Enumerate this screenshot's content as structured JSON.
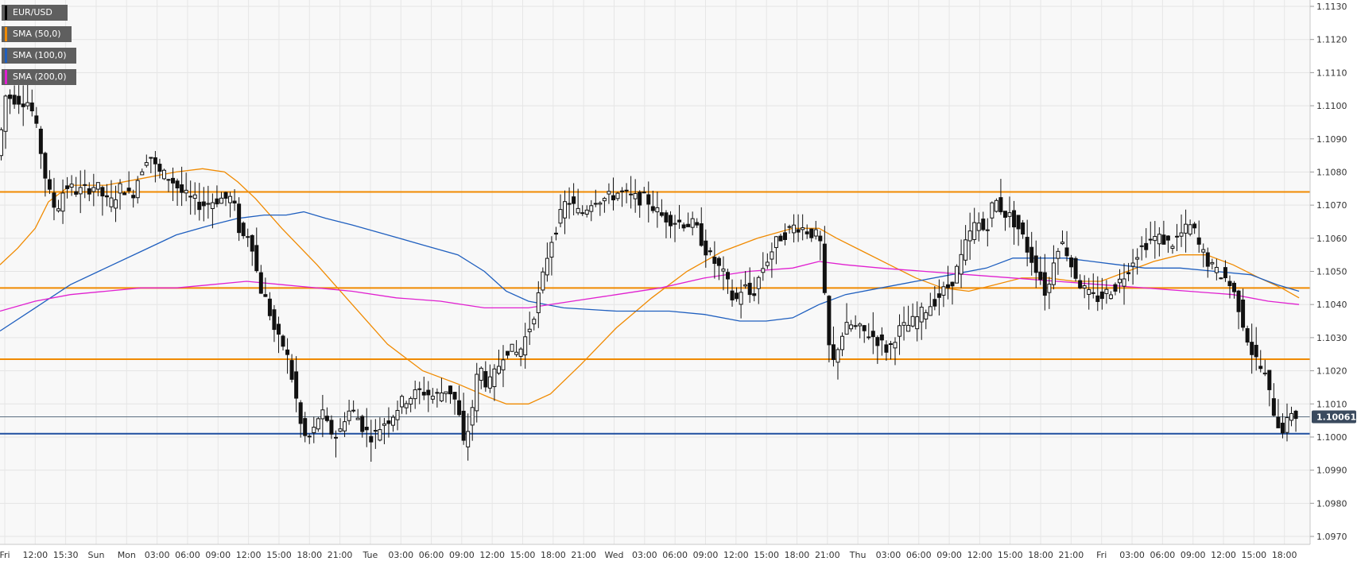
{
  "chart_data": {
    "type": "candlestick",
    "symbol": "EUR/USD",
    "ylim": [
      1.0965,
      1.1135
    ],
    "y_ticks": [
      "1.1130",
      "1.1120",
      "1.1110",
      "1.1100",
      "1.1090",
      "1.1080",
      "1.1070",
      "1.1060",
      "1.1050",
      "1.1040",
      "1.1030",
      "1.1020",
      "1.1010",
      "1.1000",
      "1.0990",
      "1.0980",
      "1.0970"
    ],
    "x_ticks": [
      "Fri",
      "12:00",
      "15:30",
      "Sun",
      "Mon",
      "03:00",
      "06:00",
      "09:00",
      "12:00",
      "15:00",
      "18:00",
      "21:00",
      "Tue",
      "03:00",
      "06:00",
      "09:00",
      "12:00",
      "15:00",
      "18:00",
      "21:00",
      "Wed",
      "03:00",
      "06:00",
      "09:00",
      "12:00",
      "15:00",
      "18:00",
      "21:00",
      "Thu",
      "03:00",
      "06:00",
      "09:00",
      "12:00",
      "15:00",
      "18:00",
      "21:00",
      "Fri",
      "03:00",
      "06:00",
      "09:00",
      "12:00",
      "15:00",
      "18:00"
    ],
    "current_price": "1.10061",
    "horizontal_levels": [
      {
        "value": 1.1074,
        "color": "#f08a00"
      },
      {
        "value": 1.1045,
        "color": "#f08a00"
      },
      {
        "value": 1.10235,
        "color": "#f08a00"
      },
      {
        "value": 1.1001,
        "color": "#1f4fa0"
      }
    ],
    "legend": [
      {
        "label": "EUR/USD",
        "color": "#000000"
      },
      {
        "label": "SMA (50,0)",
        "color": "#f08a00"
      },
      {
        "label": "SMA (100,0)",
        "color": "#1f5fbf"
      },
      {
        "label": "SMA (200,0)",
        "color": "#e020d0"
      }
    ],
    "price_path": [
      [
        0,
        1.1085
      ],
      [
        6,
        1.1103
      ],
      [
        20,
        1.1102
      ],
      [
        35,
        1.1101
      ],
      [
        45,
        1.109
      ],
      [
        55,
        1.1075
      ],
      [
        65,
        1.1068
      ],
      [
        75,
        1.1076
      ],
      [
        90,
        1.1074
      ],
      [
        110,
        1.1076
      ],
      [
        125,
        1.107
      ],
      [
        140,
        1.1076
      ],
      [
        150,
        1.1072
      ],
      [
        160,
        1.108
      ],
      [
        170,
        1.1086
      ],
      [
        180,
        1.108
      ],
      [
        195,
        1.1078
      ],
      [
        210,
        1.1073
      ],
      [
        230,
        1.107
      ],
      [
        250,
        1.1072
      ],
      [
        265,
        1.1072
      ],
      [
        275,
        1.106
      ],
      [
        285,
        1.1062
      ],
      [
        295,
        1.1046
      ],
      [
        305,
        1.104
      ],
      [
        315,
        1.103
      ],
      [
        325,
        1.1027
      ],
      [
        335,
        1.1015
      ],
      [
        345,
        1.1
      ],
      [
        355,
        1.1
      ],
      [
        365,
        1.1008
      ],
      [
        375,
        1.1002
      ],
      [
        385,
        1.1
      ],
      [
        395,
        1.1008
      ],
      [
        405,
        1.1007
      ],
      [
        415,
        1.1002
      ],
      [
        425,
        1.1
      ],
      [
        435,
        1.1004
      ],
      [
        445,
        1.1006
      ],
      [
        455,
        1.101
      ],
      [
        465,
        1.1012
      ],
      [
        480,
        1.1014
      ],
      [
        495,
        1.1012
      ],
      [
        510,
        1.1015
      ],
      [
        520,
        1.101
      ],
      [
        528,
        1.0997
      ],
      [
        535,
        1.1005
      ],
      [
        545,
        1.1022
      ],
      [
        555,
        1.1015
      ],
      [
        565,
        1.102
      ],
      [
        575,
        1.1027
      ],
      [
        590,
        1.1025
      ],
      [
        605,
        1.1035
      ],
      [
        615,
        1.1045
      ],
      [
        625,
        1.1058
      ],
      [
        635,
        1.1065
      ],
      [
        645,
        1.1072
      ],
      [
        660,
        1.1067
      ],
      [
        675,
        1.1072
      ],
      [
        690,
        1.1072
      ],
      [
        705,
        1.1074
      ],
      [
        720,
        1.1072
      ],
      [
        735,
        1.1072
      ],
      [
        750,
        1.1067
      ],
      [
        770,
        1.1065
      ],
      [
        790,
        1.1064
      ],
      [
        805,
        1.1055
      ],
      [
        815,
        1.1052
      ],
      [
        825,
        1.1048
      ],
      [
        835,
        1.104
      ],
      [
        845,
        1.1046
      ],
      [
        855,
        1.1042
      ],
      [
        865,
        1.105
      ],
      [
        875,
        1.1055
      ],
      [
        885,
        1.106
      ],
      [
        895,
        1.1062
      ],
      [
        905,
        1.1064
      ],
      [
        920,
        1.1062
      ],
      [
        932,
        1.106
      ],
      [
        938,
        1.104
      ],
      [
        945,
        1.102
      ],
      [
        955,
        1.103
      ],
      [
        965,
        1.1034
      ],
      [
        980,
        1.1032
      ],
      [
        995,
        1.103
      ],
      [
        1010,
        1.1026
      ],
      [
        1020,
        1.1032
      ],
      [
        1035,
        1.1034
      ],
      [
        1050,
        1.1038
      ],
      [
        1065,
        1.1042
      ],
      [
        1080,
        1.1046
      ],
      [
        1090,
        1.1052
      ],
      [
        1100,
        1.106
      ],
      [
        1110,
        1.1065
      ],
      [
        1120,
        1.1062
      ],
      [
        1130,
        1.1072
      ],
      [
        1140,
        1.1068
      ],
      [
        1150,
        1.1066
      ],
      [
        1160,
        1.1062
      ],
      [
        1170,
        1.1055
      ],
      [
        1180,
        1.105
      ],
      [
        1190,
        1.1042
      ],
      [
        1200,
        1.1058
      ],
      [
        1210,
        1.1058
      ],
      [
        1220,
        1.105
      ],
      [
        1230,
        1.1045
      ],
      [
        1240,
        1.1042
      ],
      [
        1250,
        1.1042
      ],
      [
        1260,
        1.1044
      ],
      [
        1270,
        1.1046
      ],
      [
        1280,
        1.105
      ],
      [
        1290,
        1.1055
      ],
      [
        1300,
        1.1058
      ],
      [
        1310,
        1.106
      ],
      [
        1320,
        1.106
      ],
      [
        1330,
        1.1058
      ],
      [
        1345,
        1.1062
      ],
      [
        1355,
        1.1064
      ],
      [
        1362,
        1.1058
      ],
      [
        1370,
        1.1054
      ],
      [
        1380,
        1.105
      ],
      [
        1390,
        1.1049
      ],
      [
        1400,
        1.1045
      ],
      [
        1407,
        1.104
      ],
      [
        1415,
        1.1032
      ],
      [
        1422,
        1.1026
      ],
      [
        1430,
        1.1022
      ],
      [
        1438,
        1.1018
      ],
      [
        1445,
        1.101
      ],
      [
        1452,
        1.1004
      ],
      [
        1460,
        1.1002
      ],
      [
        1467,
        1.1008
      ],
      [
        1474,
        1.1006
      ]
    ],
    "sma50": [
      [
        0,
        1.1052
      ],
      [
        20,
        1.1057
      ],
      [
        40,
        1.1063
      ],
      [
        55,
        1.1071
      ],
      [
        80,
        1.1076
      ],
      [
        120,
        1.1076
      ],
      [
        160,
        1.1078
      ],
      [
        200,
        1.108
      ],
      [
        230,
        1.1081
      ],
      [
        255,
        1.108
      ],
      [
        270,
        1.1077
      ],
      [
        290,
        1.1072
      ],
      [
        320,
        1.1063
      ],
      [
        360,
        1.1052
      ],
      [
        400,
        1.104
      ],
      [
        440,
        1.1028
      ],
      [
        480,
        1.102
      ],
      [
        520,
        1.1016
      ],
      [
        555,
        1.1012
      ],
      [
        575,
        1.101
      ],
      [
        600,
        1.101
      ],
      [
        625,
        1.1013
      ],
      [
        660,
        1.1022
      ],
      [
        700,
        1.1033
      ],
      [
        740,
        1.1042
      ],
      [
        780,
        1.105
      ],
      [
        820,
        1.1056
      ],
      [
        860,
        1.106
      ],
      [
        900,
        1.1063
      ],
      [
        930,
        1.1063
      ],
      [
        950,
        1.106
      ],
      [
        980,
        1.1056
      ],
      [
        1010,
        1.1052
      ],
      [
        1040,
        1.1048
      ],
      [
        1070,
        1.1045
      ],
      [
        1100,
        1.1044
      ],
      [
        1130,
        1.1046
      ],
      [
        1160,
        1.1048
      ],
      [
        1190,
        1.1048
      ],
      [
        1220,
        1.1047
      ],
      [
        1250,
        1.1047
      ],
      [
        1280,
        1.105
      ],
      [
        1310,
        1.1053
      ],
      [
        1340,
        1.1055
      ],
      [
        1370,
        1.1055
      ],
      [
        1400,
        1.1052
      ],
      [
        1430,
        1.1048
      ],
      [
        1455,
        1.1045
      ],
      [
        1475,
        1.1042
      ]
    ],
    "sma100": [
      [
        0,
        1.1032
      ],
      [
        40,
        1.1039
      ],
      [
        80,
        1.1046
      ],
      [
        120,
        1.1051
      ],
      [
        160,
        1.1056
      ],
      [
        200,
        1.1061
      ],
      [
        240,
        1.1064
      ],
      [
        270,
        1.1066
      ],
      [
        300,
        1.1067
      ],
      [
        325,
        1.1067
      ],
      [
        345,
        1.1068
      ],
      [
        370,
        1.1066
      ],
      [
        400,
        1.1064
      ],
      [
        440,
        1.1061
      ],
      [
        480,
        1.1058
      ],
      [
        520,
        1.1055
      ],
      [
        550,
        1.105
      ],
      [
        575,
        1.1044
      ],
      [
        600,
        1.1041
      ],
      [
        640,
        1.1039
      ],
      [
        700,
        1.1038
      ],
      [
        760,
        1.1038
      ],
      [
        800,
        1.1037
      ],
      [
        840,
        1.1035
      ],
      [
        870,
        1.1035
      ],
      [
        900,
        1.1036
      ],
      [
        930,
        1.104
      ],
      [
        960,
        1.1043
      ],
      [
        1000,
        1.1045
      ],
      [
        1040,
        1.1047
      ],
      [
        1080,
        1.1049
      ],
      [
        1120,
        1.1051
      ],
      [
        1150,
        1.1054
      ],
      [
        1180,
        1.1054
      ],
      [
        1210,
        1.1054
      ],
      [
        1240,
        1.1053
      ],
      [
        1270,
        1.1052
      ],
      [
        1300,
        1.1051
      ],
      [
        1340,
        1.1051
      ],
      [
        1380,
        1.105
      ],
      [
        1420,
        1.1049
      ],
      [
        1450,
        1.1046
      ],
      [
        1475,
        1.1044
      ]
    ],
    "sma200": [
      [
        0,
        1.1038
      ],
      [
        40,
        1.1041
      ],
      [
        80,
        1.1043
      ],
      [
        120,
        1.1044
      ],
      [
        160,
        1.1045
      ],
      [
        200,
        1.1045
      ],
      [
        240,
        1.1046
      ],
      [
        280,
        1.1047
      ],
      [
        320,
        1.1046
      ],
      [
        360,
        1.1045
      ],
      [
        400,
        1.1044
      ],
      [
        450,
        1.1042
      ],
      [
        500,
        1.1041
      ],
      [
        550,
        1.1039
      ],
      [
        600,
        1.1039
      ],
      [
        650,
        1.1041
      ],
      [
        700,
        1.1043
      ],
      [
        750,
        1.1045
      ],
      [
        800,
        1.1048
      ],
      [
        850,
        1.105
      ],
      [
        900,
        1.1051
      ],
      [
        930,
        1.1053
      ],
      [
        960,
        1.1052
      ],
      [
        1000,
        1.1051
      ],
      [
        1050,
        1.105
      ],
      [
        1100,
        1.1049
      ],
      [
        1150,
        1.1048
      ],
      [
        1200,
        1.1047
      ],
      [
        1250,
        1.1046
      ],
      [
        1300,
        1.1045
      ],
      [
        1350,
        1.1044
      ],
      [
        1400,
        1.1043
      ],
      [
        1440,
        1.1041
      ],
      [
        1475,
        1.104
      ]
    ]
  }
}
